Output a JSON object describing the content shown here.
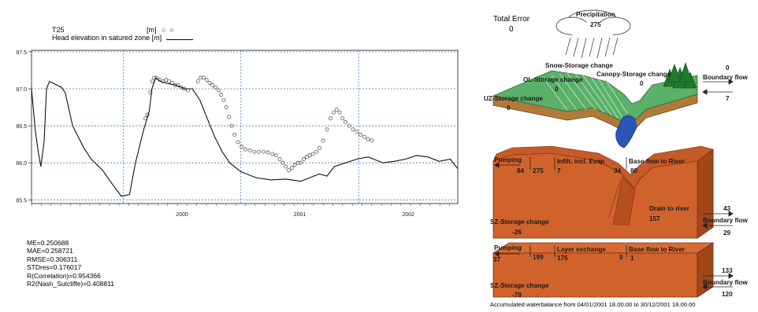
{
  "chart_data": {
    "type": "line",
    "title_lines": [
      "T25",
      "Head elevation in satured zone [m]"
    ],
    "legend": [
      {
        "label": "[m]",
        "marker": "circles"
      },
      {
        "label": "Head elevation in satured zone [m]",
        "marker": "line"
      }
    ],
    "y_ticks": [
      "87.5",
      "87.0",
      "86.5",
      "86.0",
      "85.5"
    ],
    "ylim": [
      85.45,
      87.52
    ],
    "x_ticks": [
      "2000",
      "2001",
      "2002"
    ],
    "x_range_days": [
      0,
      1140
    ],
    "year_boundary_days": [
      245,
      560,
      875
    ],
    "series": [
      {
        "type": "line",
        "points": [
          [
            0,
            87.0
          ],
          [
            10,
            86.45
          ],
          [
            18,
            86.15
          ],
          [
            25,
            85.95
          ],
          [
            34,
            86.3
          ],
          [
            40,
            87.0
          ],
          [
            48,
            87.1
          ],
          [
            60,
            87.07
          ],
          [
            80,
            87.02
          ],
          [
            90,
            86.95
          ],
          [
            110,
            86.5
          ],
          [
            140,
            86.2
          ],
          [
            160,
            86.05
          ],
          [
            190,
            85.9
          ],
          [
            215,
            85.72
          ],
          [
            240,
            85.55
          ],
          [
            262,
            85.57
          ],
          [
            278,
            86.0
          ],
          [
            300,
            86.45
          ],
          [
            315,
            86.7
          ],
          [
            322,
            87.0
          ],
          [
            332,
            87.15
          ],
          [
            345,
            87.1
          ],
          [
            365,
            87.07
          ],
          [
            385,
            87.05
          ],
          [
            410,
            87.0
          ],
          [
            430,
            87.0
          ],
          [
            450,
            86.85
          ],
          [
            470,
            86.6
          ],
          [
            490,
            86.35
          ],
          [
            510,
            86.15
          ],
          [
            530,
            86.0
          ],
          [
            560,
            85.88
          ],
          [
            600,
            85.8
          ],
          [
            640,
            85.77
          ],
          [
            680,
            85.78
          ],
          [
            720,
            85.75
          ],
          [
            745,
            85.8
          ],
          [
            770,
            85.85
          ],
          [
            790,
            85.82
          ],
          [
            810,
            85.95
          ],
          [
            840,
            86.0
          ],
          [
            870,
            86.05
          ],
          [
            900,
            86.08
          ],
          [
            940,
            86.0
          ],
          [
            970,
            86.02
          ],
          [
            1000,
            86.05
          ],
          [
            1030,
            86.1
          ],
          [
            1060,
            86.08
          ],
          [
            1090,
            86.02
          ],
          [
            1120,
            86.05
          ],
          [
            1140,
            85.92
          ]
        ]
      },
      {
        "type": "scatter",
        "points": [
          [
            305,
            86.6
          ],
          [
            310,
            86.65
          ],
          [
            318,
            86.95
          ],
          [
            323,
            87.1
          ],
          [
            328,
            87.15
          ],
          [
            335,
            87.15
          ],
          [
            343,
            87.12
          ],
          [
            352,
            87.1
          ],
          [
            360,
            87.12
          ],
          [
            368,
            87.1
          ],
          [
            376,
            87.08
          ],
          [
            384,
            87.05
          ],
          [
            392,
            87.05
          ],
          [
            400,
            87.02
          ],
          [
            408,
            87.0
          ],
          [
            418,
            86.98
          ],
          [
            445,
            87.1
          ],
          [
            452,
            87.15
          ],
          [
            460,
            87.15
          ],
          [
            468,
            87.12
          ],
          [
            476,
            87.08
          ],
          [
            484,
            87.05
          ],
          [
            492,
            87.02
          ],
          [
            500,
            86.98
          ],
          [
            507,
            86.92
          ],
          [
            514,
            86.85
          ],
          [
            521,
            86.75
          ],
          [
            528,
            86.62
          ],
          [
            535,
            86.5
          ],
          [
            543,
            86.38
          ],
          [
            552,
            86.28
          ],
          [
            562,
            86.22
          ],
          [
            572,
            86.18
          ],
          [
            584,
            86.17
          ],
          [
            596,
            86.15
          ],
          [
            608,
            86.15
          ],
          [
            620,
            86.15
          ],
          [
            632,
            86.14
          ],
          [
            644,
            86.12
          ],
          [
            654,
            86.1
          ],
          [
            664,
            86.05
          ],
          [
            672,
            86.0
          ],
          [
            680,
            85.95
          ],
          [
            688,
            85.9
          ],
          [
            696,
            85.93
          ],
          [
            704,
            85.97
          ],
          [
            712,
            86.0
          ],
          [
            720,
            86.0
          ],
          [
            728,
            86.05
          ],
          [
            736,
            86.08
          ],
          [
            744,
            86.1
          ],
          [
            752,
            86.12
          ],
          [
            762,
            86.15
          ],
          [
            770,
            86.2
          ],
          [
            780,
            86.3
          ],
          [
            790,
            86.45
          ],
          [
            800,
            86.6
          ],
          [
            808,
            86.68
          ],
          [
            816,
            86.72
          ],
          [
            824,
            86.68
          ],
          [
            832,
            86.6
          ],
          [
            840,
            86.55
          ],
          [
            850,
            86.5
          ],
          [
            860,
            86.45
          ],
          [
            870,
            86.42
          ],
          [
            880,
            86.38
          ],
          [
            890,
            86.35
          ],
          [
            900,
            86.32
          ],
          [
            910,
            86.3
          ]
        ]
      }
    ],
    "xrange_note": ""
  },
  "statistics": [
    "ME=0.250688",
    "MAE=0.258721",
    "RMSE=0.306311",
    "STDres=0.176017",
    "R(Correlation)=0.954366",
    "R2(Nash_Sutcliffe)=0.408811"
  ],
  "waterbalance": {
    "total_error_label": "Total Error",
    "total_error_value": "0",
    "precipitation_label": "Precipitation",
    "precipitation_value": "275",
    "snow_storage_label": "Snow-Storage change",
    "canopy_storage_label": "Canopy-Storage change",
    "canopy_storage_value": "0",
    "ol_storage_label": "OL-Storage change",
    "ol_storage_value": "0",
    "uz_storage_label": "UZ-Storage change",
    "uz_storage_value": "0",
    "boundary_flow_top_label": "Boundary flow",
    "boundary_flow_top_in": "0",
    "boundary_flow_top_out": "7",
    "pumping_label": "Pumping",
    "pumping1_left": "84",
    "pumping1_right": "275",
    "infilt_label": "Infilt. incl. Evap",
    "infilt_value": "7",
    "val_34": "34",
    "base_flow_label": "Base flow to River",
    "base_flow1_value": "80",
    "drain_label": "Drain to river",
    "drain_value": "157",
    "sz_storage1_label": "SZ-Storage change",
    "sz_storage1_value": "-26",
    "boundary_flow_mid_in": "43",
    "boundary_flow_mid_label": "Boundary flow",
    "boundary_flow_mid_out": "29",
    "pumping2_label": "Pumping",
    "pumping2_left": "37",
    "pumping2_right": "199",
    "layer_exchange_label": "Layer exchange",
    "layer_exchange_value": "175",
    "val_0": "0",
    "base_flow2_label": "Base flow to River",
    "base_flow2_value": "1",
    "sz_storage2_label": "SZ-Storage change",
    "sz_storage2_value": "-79",
    "boundary_flow_bot_in": "133",
    "boundary_flow_bot_label": "Boundary flow",
    "boundary_flow_bot_out": "120",
    "caption": "Accumulated waterbalance from 04/01/2001 18.00.00 to 30/12/2001 18.00.00",
    "colors": {
      "land_green": "#5bb06a",
      "soil_brown": "#b07a3a",
      "sz_orange": "#d0622c",
      "sz_dark": "#a2461b",
      "river_blue": "#2b55b8"
    }
  }
}
